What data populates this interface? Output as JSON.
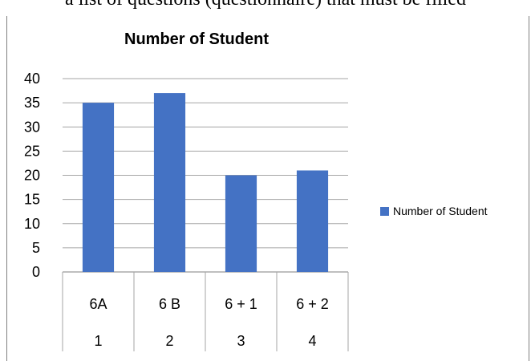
{
  "page_text": "a list of questions (questionnaire) that must be filled",
  "chart_data": {
    "type": "bar",
    "title": "Number of Student",
    "categories": [
      "6A",
      "6 B",
      "6 + 1",
      "6 + 2"
    ],
    "category_index": [
      "1",
      "2",
      "3",
      "4"
    ],
    "series": [
      {
        "name": "Number of Student",
        "values": [
          35,
          37,
          20,
          21
        ],
        "color": "#4472c4"
      }
    ],
    "ylim": [
      0,
      40
    ],
    "yticks": [
      "0",
      "5",
      "10",
      "15",
      "20",
      "25",
      "30",
      "35",
      "40"
    ],
    "grid": true,
    "legend": "right"
  }
}
